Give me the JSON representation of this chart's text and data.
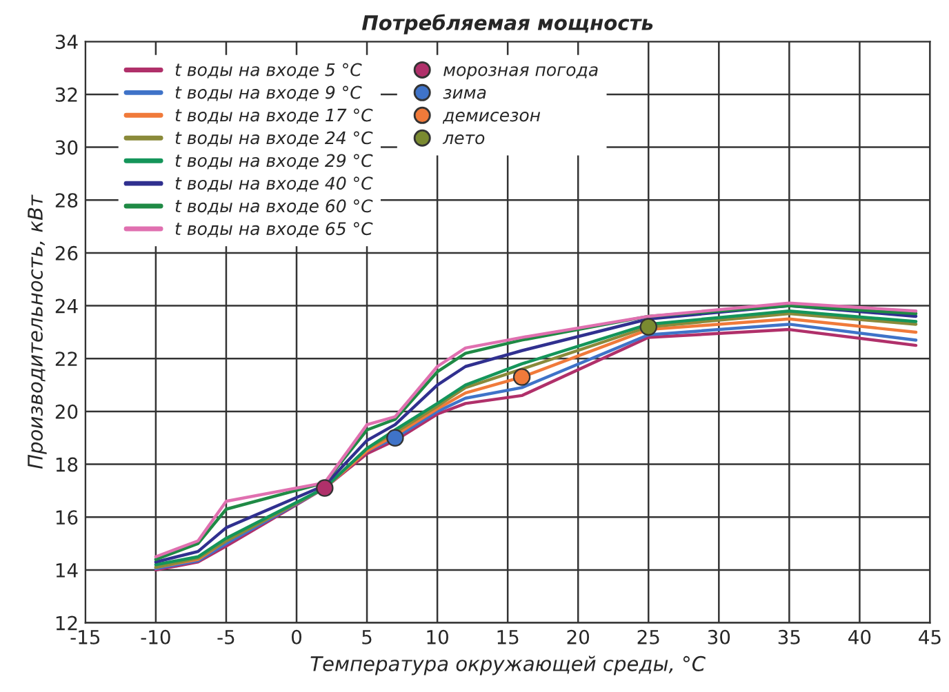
{
  "chart_data": {
    "type": "line",
    "title": "Потребляемая мощность",
    "xlabel": "Температура окружающей среды, °С",
    "ylabel": "Производительность, кВт",
    "x": [
      -10,
      -7,
      -5,
      2,
      5,
      7,
      10,
      12,
      16,
      25,
      35,
      44
    ],
    "xlim": [
      -15,
      45
    ],
    "xticks": [
      -15,
      -10,
      -5,
      0,
      5,
      10,
      15,
      20,
      25,
      30,
      35,
      40,
      45
    ],
    "ylim": [
      12,
      34
    ],
    "yticks": [
      12,
      14,
      16,
      18,
      20,
      22,
      24,
      26,
      28,
      30,
      32,
      34
    ],
    "grid": true,
    "legend": "top left",
    "series": [
      {
        "name": "t воды на входе 5 °С",
        "color": "#b0306a",
        "values": [
          14.0,
          14.3,
          14.9,
          17.1,
          18.4,
          18.9,
          19.9,
          20.3,
          20.6,
          22.8,
          23.1,
          22.5
        ]
      },
      {
        "name": "t воды на входе 9 °С",
        "color": "#3f73c8",
        "values": [
          14.05,
          14.35,
          15.0,
          17.1,
          18.5,
          19.0,
          20.0,
          20.5,
          20.9,
          22.9,
          23.3,
          22.7
        ]
      },
      {
        "name": "t воды на входе 17 °С",
        "color": "#f07a3a",
        "values": [
          14.1,
          14.4,
          15.1,
          17.1,
          18.5,
          19.1,
          20.1,
          20.7,
          21.3,
          23.1,
          23.5,
          23.0
        ]
      },
      {
        "name": "t воды на входе 24 °С",
        "color": "#8a8a3a",
        "values": [
          14.1,
          14.45,
          15.1,
          17.1,
          18.6,
          19.2,
          20.2,
          20.9,
          21.6,
          23.2,
          23.7,
          23.3
        ]
      },
      {
        "name": "t воды на входе 29 °С",
        "color": "#14955a",
        "values": [
          14.2,
          14.5,
          15.2,
          17.1,
          18.6,
          19.3,
          20.3,
          21.0,
          21.8,
          23.3,
          23.8,
          23.4
        ]
      },
      {
        "name": "t воды на входе 40 °С",
        "color": "#30308f",
        "values": [
          14.3,
          14.7,
          15.6,
          17.2,
          18.9,
          19.5,
          21.0,
          21.7,
          22.3,
          23.5,
          24.0,
          23.6
        ]
      },
      {
        "name": "t воды на входе 60 °С",
        "color": "#1f8a45",
        "values": [
          14.4,
          15.0,
          16.3,
          17.3,
          19.3,
          19.7,
          21.5,
          22.2,
          22.7,
          23.6,
          24.0,
          23.7
        ]
      },
      {
        "name": "t воды на входе 65 °С",
        "color": "#e070b0",
        "values": [
          14.5,
          15.1,
          16.6,
          17.3,
          19.5,
          19.8,
          21.7,
          22.4,
          22.8,
          23.6,
          24.1,
          23.8
        ]
      },
      {
        "name": "морозная погода",
        "type": "scatter",
        "marker": "circle",
        "color": "#b0306a",
        "x": [
          2
        ],
        "values": [
          17.1
        ]
      },
      {
        "name": "зима",
        "type": "scatter",
        "marker": "circle",
        "color": "#3f73c8",
        "x": [
          7
        ],
        "values": [
          19.0
        ]
      },
      {
        "name": "демисезон",
        "type": "scatter",
        "marker": "circle",
        "color": "#f07a3a",
        "x": [
          16
        ],
        "values": [
          21.3
        ]
      },
      {
        "name": "лето",
        "type": "scatter",
        "marker": "circle",
        "color": "#7a8a30",
        "x": [
          25
        ],
        "values": [
          23.2
        ]
      }
    ]
  }
}
